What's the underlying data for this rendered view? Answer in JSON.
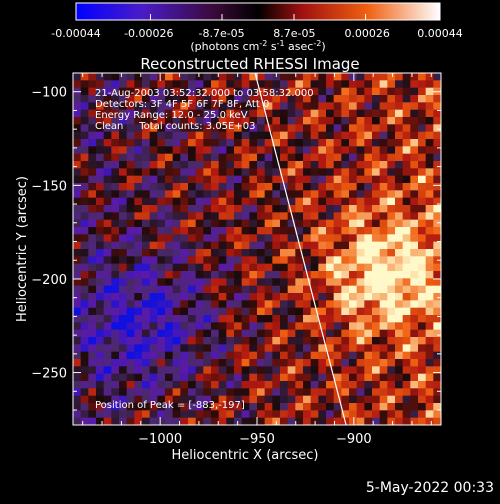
{
  "colorbar": {
    "tick_labels": [
      "-0.00044",
      "-0.00026",
      "-8.7e-05",
      "8.7e-05",
      "0.00026",
      "0.00044"
    ],
    "tick_values": [
      -0.00044,
      -0.00026,
      -8.7e-05,
      8.7e-05,
      0.00026,
      0.00044
    ],
    "range": [
      -0.00044,
      0.00044
    ],
    "unit_prefix": "(photons cm",
    "unit_sup1": "-2",
    "unit_mid1": " s",
    "unit_sup2": "-1",
    "unit_mid2": " asec",
    "unit_sup3": "-2",
    "unit_suffix": ")"
  },
  "chart_data": {
    "type": "heatmap",
    "title": "Reconstructed RHESSI Image",
    "xlabel": "Heliocentric X (arcsec)",
    "ylabel": "Heliocentric Y (arcsec)",
    "xlim": [
      -1045,
      -855
    ],
    "ylim": [
      -278,
      -90
    ],
    "x_ticks": [
      -1000,
      -950,
      -900
    ],
    "x_tick_labels": [
      "−1000",
      "−950",
      "−900"
    ],
    "y_ticks": [
      -100,
      -150,
      -200,
      -250
    ],
    "y_tick_labels": [
      "−100",
      "−150",
      "−200",
      "−250"
    ],
    "annotations": [
      "21-Aug-2003 03:52:32.000 to 03:58:32.000",
      "Detectors: 3F 4F 5F 6F 7F 8F, Att 0",
      "Energy Range: 12.0 - 25.0 keV",
      "Clean     Total counts: 3.05E+03"
    ],
    "peak_label": "Position of Peak = [-883,-197]",
    "peak": [
      -883,
      -197
    ],
    "limb_line": [
      [
        -951,
        -90
      ],
      [
        -904,
        -278
      ]
    ],
    "colormap": [
      "#1010e0",
      "#5a1aa8",
      "#4a2a6a",
      "#1a0a0a",
      "#b01810",
      "#f06010",
      "#fff8c8"
    ],
    "grid": false
  },
  "timestamp": "5-May-2022 00:33"
}
